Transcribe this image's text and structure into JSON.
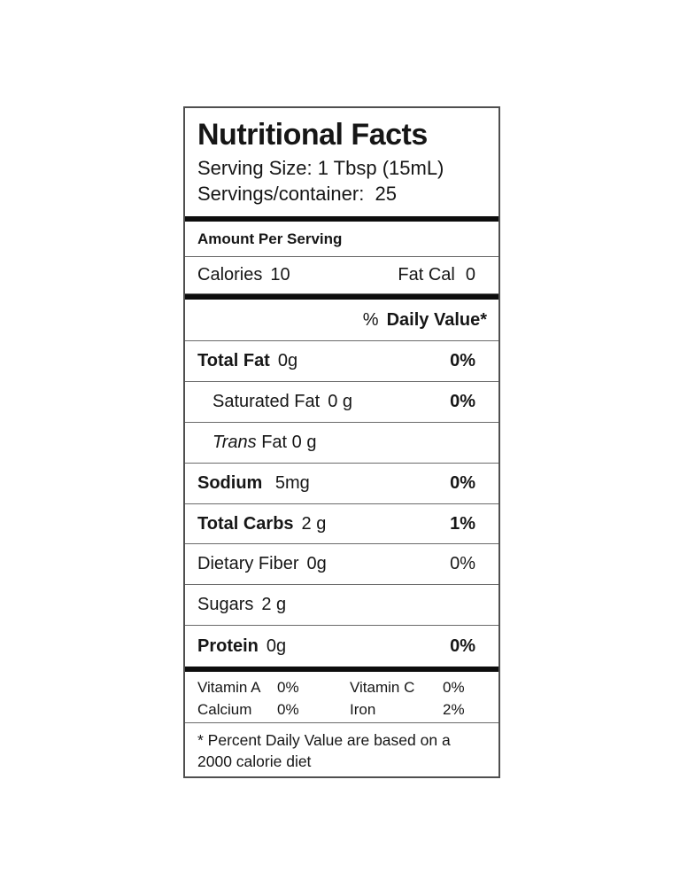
{
  "colors": {
    "background": "#ffffff",
    "text": "#161616",
    "outer_border": "#4f4f4f",
    "row_divider": "#6a6a6a",
    "thick_bar": "#0d0d0d"
  },
  "label": {
    "header": {
      "title": "Nutritional Facts",
      "serving_size": "Serving Size: 1 Tbsp (15mL)",
      "servings_per_container": "Servings/container:  25"
    },
    "amount_per_serving": "Amount Per Serving",
    "calories": {
      "label": "Calories",
      "value": "10",
      "fat_cal_label": "Fat Cal",
      "fat_cal_value": "0"
    },
    "daily_value_header": {
      "percent_sign": "%",
      "label": "Daily Value*"
    },
    "rows": [
      {
        "name": "Total Fat",
        "amount": "0g",
        "dv": "0%"
      },
      {
        "name": "Saturated Fat",
        "amount": "0 g",
        "dv": "0%"
      },
      {
        "name_italic": "Trans",
        "name_rest": " Fat 0 g",
        "dv": ""
      },
      {
        "name": "Sodium",
        "amount": " 5mg",
        "dv": "0%"
      },
      {
        "name": "Total Carbs",
        "amount": "2 g",
        "dv": "1%"
      },
      {
        "name": "Dietary Fiber",
        "amount": "0g",
        "dv": "0%"
      },
      {
        "name": "Sugars",
        "amount": "2 g",
        "dv": ""
      },
      {
        "name": "Protein",
        "amount": "0g",
        "dv": "0%"
      }
    ],
    "vitamins": [
      {
        "name1": "Vitamin A",
        "value1": "0%",
        "name2": "Vitamin C",
        "value2": "0%"
      },
      {
        "name1": "Calcium",
        "value1": "0%",
        "name2": "Iron",
        "value2": "2%"
      }
    ],
    "footnote": "* Percent Daily Value are based on a 2000 calorie diet"
  }
}
